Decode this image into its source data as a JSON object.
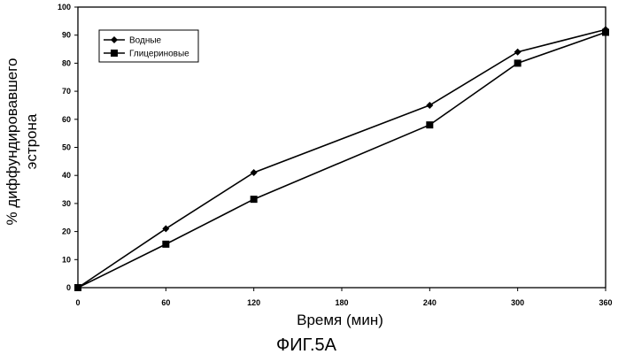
{
  "figure_label": "ФИГ.5А",
  "chart_data": {
    "type": "line",
    "title": "",
    "xlabel": "Время (мин)",
    "ylabel_lines": [
      "% диффундировавшего",
      "эстрона"
    ],
    "xlim": [
      0,
      360
    ],
    "ylim": [
      0,
      100
    ],
    "xticks": [
      0,
      60,
      120,
      180,
      240,
      300,
      360
    ],
    "yticks": [
      0,
      10,
      20,
      30,
      40,
      50,
      60,
      70,
      80,
      90,
      100
    ],
    "grid": false,
    "legend_position": "top-left",
    "series": [
      {
        "name": "Водные",
        "marker": "diamond",
        "color": "#000000",
        "x": [
          0,
          60,
          120,
          240,
          300,
          360
        ],
        "y": [
          0,
          21,
          41,
          65,
          84,
          92
        ]
      },
      {
        "name": "Глицериновые",
        "marker": "square",
        "color": "#000000",
        "x": [
          0,
          60,
          120,
          240,
          300,
          360
        ],
        "y": [
          0,
          15.5,
          31.5,
          58,
          80,
          91
        ]
      }
    ]
  }
}
